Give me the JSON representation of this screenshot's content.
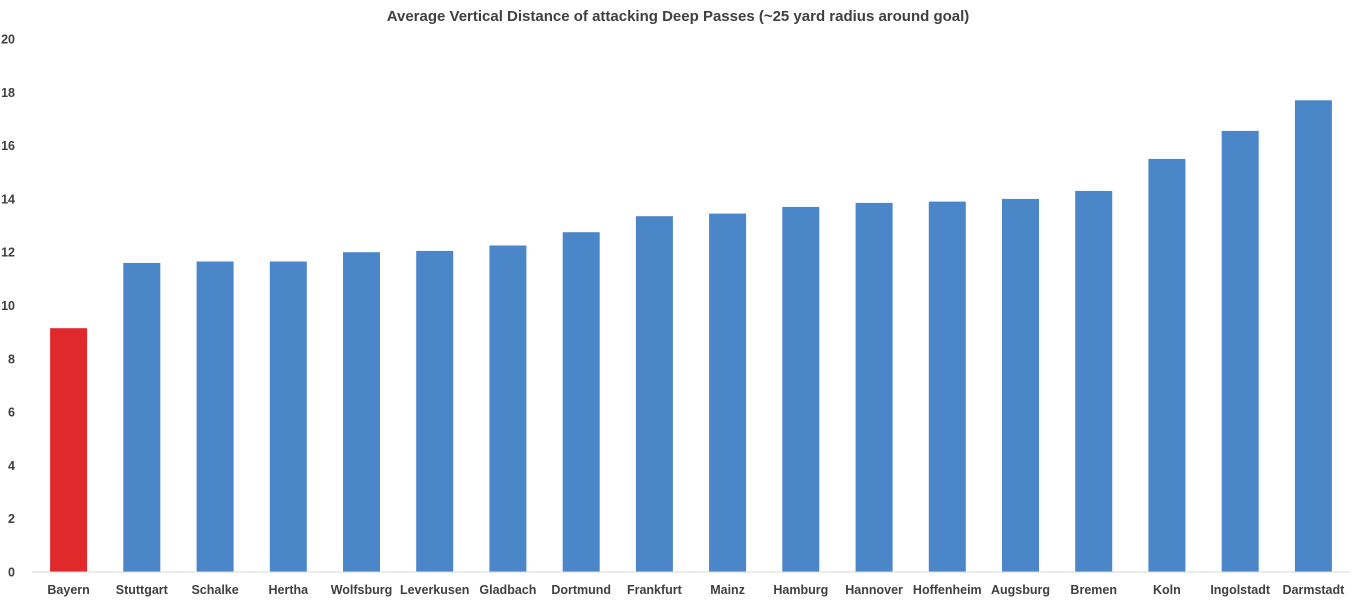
{
  "chart_data": {
    "type": "bar",
    "title": "Average Vertical Distance of attacking Deep Passes (~25 yard radius around goal)",
    "xlabel": "",
    "ylabel": "",
    "categories": [
      "Bayern",
      "Stuttgart",
      "Schalke",
      "Hertha",
      "Wolfsburg",
      "Leverkusen",
      "Gladbach",
      "Dortmund",
      "Frankfurt",
      "Mainz",
      "Hamburg",
      "Hannover",
      "Hoffenheim",
      "Augsburg",
      "Bremen",
      "Koln",
      "Ingolstadt",
      "Darmstadt"
    ],
    "values": [
      9.15,
      11.6,
      11.65,
      11.65,
      12.0,
      12.05,
      12.25,
      12.75,
      13.35,
      13.45,
      13.7,
      13.85,
      13.9,
      14.0,
      14.3,
      15.5,
      16.55,
      17.7
    ],
    "ylim": [
      0,
      20
    ],
    "yticks": [
      0,
      2,
      4,
      6,
      8,
      10,
      12,
      14,
      16,
      18,
      20
    ],
    "grid": false,
    "legend": "none",
    "colors": {
      "default_bar": "#4a86c8",
      "highlight_bar": "#e0292b",
      "highlight_category": "Bayern",
      "axis": "#d9d9d9",
      "text": "#404040"
    }
  }
}
